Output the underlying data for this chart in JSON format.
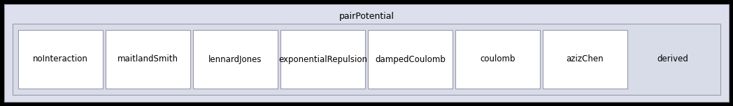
{
  "title": "pairPotential",
  "outer_bg": "#dde0ec",
  "inner_bg": "#d8dbe8",
  "box_bg": "#ffffff",
  "box_border": "#9999aa",
  "outer_border": "#9999aa",
  "inner_border": "#9999aa",
  "text_color": "#000000",
  "fig_bg": "#000000",
  "title_fontsize": 9,
  "label_fontsize": 8.5,
  "boxes": [
    "noInteraction",
    "maitlandSmith",
    "lennardJones",
    "exponentialRepulsion",
    "dampedCoulomb",
    "coulomb",
    "azizChen"
  ],
  "derived_label": "derived",
  "fig_width": 10.48,
  "fig_height": 1.52
}
